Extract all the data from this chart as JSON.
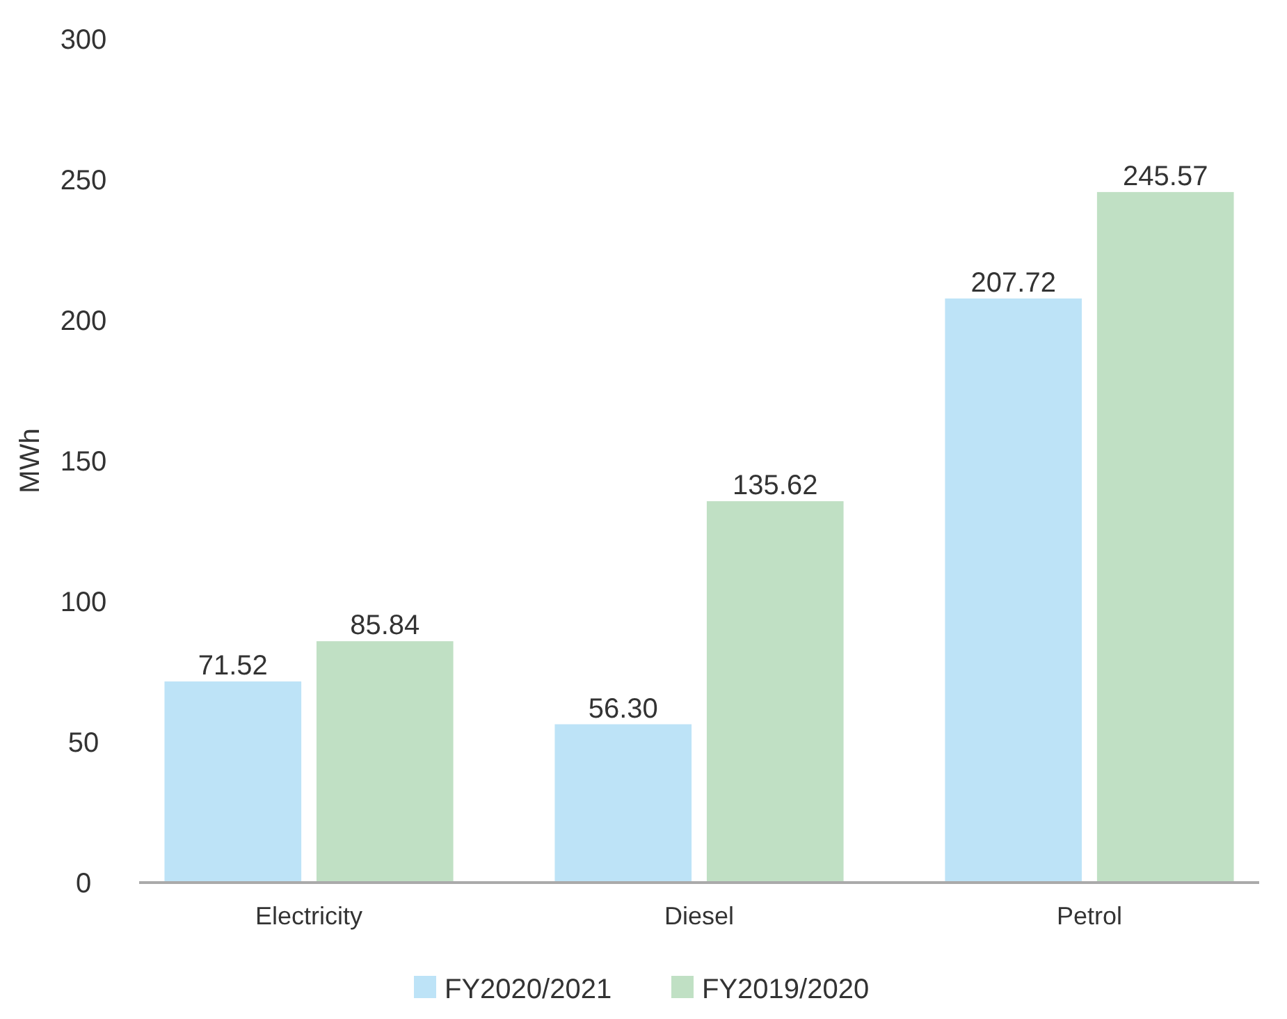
{
  "chart_data": {
    "type": "bar",
    "ylabel": "MWh",
    "categories": [
      "Electricity",
      "Diesel",
      "Petrol"
    ],
    "series": [
      {
        "name": "FY2020/2021",
        "color": "#bde3f7",
        "values": [
          71.52,
          56.3,
          207.72
        ],
        "value_labels": [
          "71.52",
          "56.30",
          "207.72"
        ]
      },
      {
        "name": "FY2019/2020",
        "color": "#c0e0c4",
        "values": [
          85.84,
          135.62,
          245.57
        ],
        "value_labels": [
          "85.84",
          "135.62",
          "245.57"
        ]
      }
    ],
    "ylim": [
      0,
      300
    ],
    "yticks": [
      0,
      50,
      100,
      150,
      200,
      250,
      300
    ],
    "grid": false,
    "legend": "bottom"
  }
}
